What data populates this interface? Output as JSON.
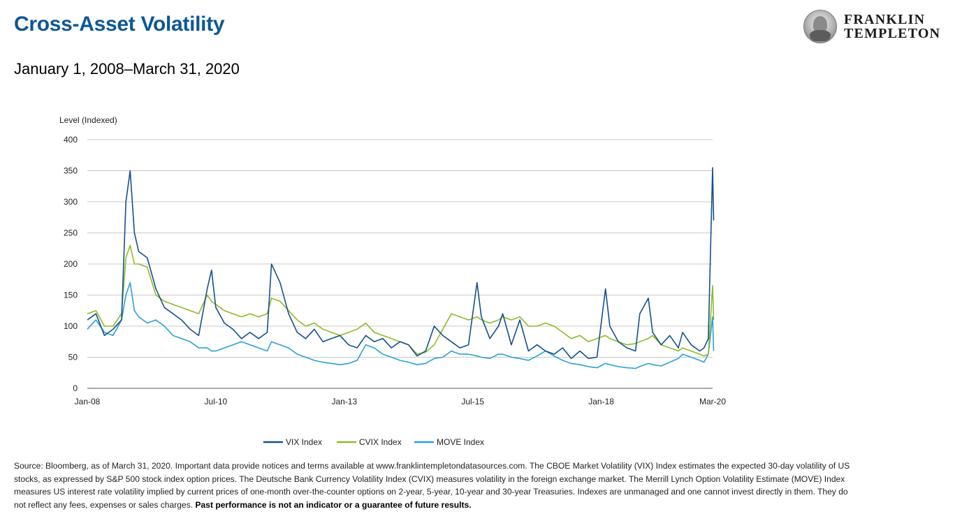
{
  "header": {
    "title": "Cross-Asset Volatility",
    "subtitle": "January 1, 2008–March 31, 2020"
  },
  "logo": {
    "line1": "FRANKLIN",
    "line2": "TEMPLETON",
    "icon": "benjamin-franklin-portrait-icon"
  },
  "footnote": {
    "text": "Source: Bloomberg, as of March 31, 2020. Important data provide notices and terms available at www.franklintempletondatasources.com. The CBOE Market Volatility (VIX) Index estimates the expected 30-day volatility of US stocks, as expressed by S&P 500 stock index option prices. The Deutsche Bank Currency Volatility Index (CVIX) measures volatility in the foreign exchange market. The Merrill Lynch Option Volatility Estimate (MOVE) Index measures US interest rate volatility implied by current prices of one-month over-the-counter options on 2-year, 5-year, 10-year and 30-year Treasuries. Indexes are unmanaged and one cannot invest directly in them. They do not reflect any fees, expenses or sales charges. ",
    "bold": "Past performance is not an indicator or a guarantee of future results."
  },
  "chart_data": {
    "type": "line",
    "ylabel": "Level (Indexed)",
    "ylim": [
      0,
      400
    ],
    "yticks": [
      0,
      50,
      100,
      150,
      200,
      250,
      300,
      350,
      400
    ],
    "xlim": [
      "2008-01",
      "2020-03"
    ],
    "xticks": [
      {
        "label": "Jan-08",
        "date": "2008-01"
      },
      {
        "label": "Jul-10",
        "date": "2010-07"
      },
      {
        "label": "Jan-13",
        "date": "2013-01"
      },
      {
        "label": "Jul-15",
        "date": "2015-07"
      },
      {
        "label": "Jan-18",
        "date": "2018-01"
      },
      {
        "label": "Mar-20",
        "date": "2020-03"
      }
    ],
    "grid": true,
    "legend": "bottom-center",
    "series": [
      {
        "name": "VIX Index",
        "color": "#14508c",
        "points": [
          [
            "2008-01",
            110
          ],
          [
            "2008-03",
            120
          ],
          [
            "2008-05",
            85
          ],
          [
            "2008-07",
            95
          ],
          [
            "2008-09",
            110
          ],
          [
            "2008-10",
            300
          ],
          [
            "2008-11",
            350
          ],
          [
            "2008-12",
            250
          ],
          [
            "2009-01",
            220
          ],
          [
            "2009-03",
            210
          ],
          [
            "2009-05",
            160
          ],
          [
            "2009-07",
            130
          ],
          [
            "2009-09",
            120
          ],
          [
            "2009-11",
            110
          ],
          [
            "2010-01",
            95
          ],
          [
            "2010-03",
            85
          ],
          [
            "2010-05",
            160
          ],
          [
            "2010-06",
            190
          ],
          [
            "2010-07",
            130
          ],
          [
            "2010-09",
            105
          ],
          [
            "2010-11",
            95
          ],
          [
            "2011-01",
            80
          ],
          [
            "2011-03",
            90
          ],
          [
            "2011-05",
            80
          ],
          [
            "2011-07",
            90
          ],
          [
            "2011-08",
            200
          ],
          [
            "2011-10",
            170
          ],
          [
            "2011-12",
            120
          ],
          [
            "2012-02",
            90
          ],
          [
            "2012-04",
            80
          ],
          [
            "2012-06",
            95
          ],
          [
            "2012-08",
            75
          ],
          [
            "2012-10",
            80
          ],
          [
            "2012-12",
            85
          ],
          [
            "2013-02",
            70
          ],
          [
            "2013-04",
            65
          ],
          [
            "2013-06",
            85
          ],
          [
            "2013-08",
            75
          ],
          [
            "2013-10",
            80
          ],
          [
            "2013-12",
            65
          ],
          [
            "2014-02",
            75
          ],
          [
            "2014-04",
            70
          ],
          [
            "2014-06",
            52
          ],
          [
            "2014-08",
            60
          ],
          [
            "2014-10",
            100
          ],
          [
            "2014-12",
            85
          ],
          [
            "2015-02",
            75
          ],
          [
            "2015-04",
            65
          ],
          [
            "2015-06",
            70
          ],
          [
            "2015-08",
            170
          ],
          [
            "2015-09",
            115
          ],
          [
            "2015-11",
            80
          ],
          [
            "2016-01",
            100
          ],
          [
            "2016-02",
            120
          ],
          [
            "2016-04",
            70
          ],
          [
            "2016-06",
            110
          ],
          [
            "2016-08",
            60
          ],
          [
            "2016-10",
            70
          ],
          [
            "2016-12",
            60
          ],
          [
            "2017-02",
            55
          ],
          [
            "2017-04",
            65
          ],
          [
            "2017-06",
            48
          ],
          [
            "2017-08",
            60
          ],
          [
            "2017-10",
            48
          ],
          [
            "2017-12",
            50
          ],
          [
            "2018-02",
            160
          ],
          [
            "2018-03",
            100
          ],
          [
            "2018-05",
            75
          ],
          [
            "2018-07",
            65
          ],
          [
            "2018-09",
            60
          ],
          [
            "2018-10",
            120
          ],
          [
            "2018-12",
            145
          ],
          [
            "2019-01",
            90
          ],
          [
            "2019-03",
            70
          ],
          [
            "2019-05",
            85
          ],
          [
            "2019-07",
            65
          ],
          [
            "2019-08",
            90
          ],
          [
            "2019-10",
            70
          ],
          [
            "2019-12",
            60
          ],
          [
            "2020-01",
            65
          ],
          [
            "2020-02",
            80
          ],
          [
            "2020-03",
            355
          ],
          [
            "2020-03",
            270
          ]
        ]
      },
      {
        "name": "CVIX Index",
        "color": "#8dbb25",
        "points": [
          [
            "2008-01",
            120
          ],
          [
            "2008-03",
            125
          ],
          [
            "2008-05",
            100
          ],
          [
            "2008-07",
            100
          ],
          [
            "2008-09",
            120
          ],
          [
            "2008-10",
            210
          ],
          [
            "2008-11",
            230
          ],
          [
            "2008-12",
            200
          ],
          [
            "2009-01",
            200
          ],
          [
            "2009-03",
            195
          ],
          [
            "2009-05",
            150
          ],
          [
            "2009-07",
            140
          ],
          [
            "2009-09",
            135
          ],
          [
            "2009-11",
            130
          ],
          [
            "2010-01",
            125
          ],
          [
            "2010-03",
            120
          ],
          [
            "2010-05",
            150
          ],
          [
            "2010-06",
            140
          ],
          [
            "2010-07",
            135
          ],
          [
            "2010-09",
            125
          ],
          [
            "2010-11",
            120
          ],
          [
            "2011-01",
            115
          ],
          [
            "2011-03",
            120
          ],
          [
            "2011-05",
            115
          ],
          [
            "2011-07",
            120
          ],
          [
            "2011-08",
            145
          ],
          [
            "2011-10",
            140
          ],
          [
            "2011-12",
            125
          ],
          [
            "2012-02",
            110
          ],
          [
            "2012-04",
            100
          ],
          [
            "2012-06",
            105
          ],
          [
            "2012-08",
            95
          ],
          [
            "2012-10",
            90
          ],
          [
            "2012-12",
            85
          ],
          [
            "2013-02",
            90
          ],
          [
            "2013-04",
            95
          ],
          [
            "2013-06",
            105
          ],
          [
            "2013-08",
            90
          ],
          [
            "2013-10",
            85
          ],
          [
            "2013-12",
            80
          ],
          [
            "2014-02",
            75
          ],
          [
            "2014-04",
            70
          ],
          [
            "2014-06",
            55
          ],
          [
            "2014-08",
            58
          ],
          [
            "2014-10",
            70
          ],
          [
            "2014-12",
            95
          ],
          [
            "2015-02",
            120
          ],
          [
            "2015-04",
            115
          ],
          [
            "2015-06",
            110
          ],
          [
            "2015-08",
            115
          ],
          [
            "2015-09",
            110
          ],
          [
            "2015-11",
            105
          ],
          [
            "2016-01",
            110
          ],
          [
            "2016-02",
            115
          ],
          [
            "2016-04",
            110
          ],
          [
            "2016-06",
            115
          ],
          [
            "2016-08",
            100
          ],
          [
            "2016-10",
            100
          ],
          [
            "2016-12",
            105
          ],
          [
            "2017-02",
            100
          ],
          [
            "2017-04",
            90
          ],
          [
            "2017-06",
            80
          ],
          [
            "2017-08",
            85
          ],
          [
            "2017-10",
            75
          ],
          [
            "2017-12",
            80
          ],
          [
            "2018-02",
            85
          ],
          [
            "2018-03",
            80
          ],
          [
            "2018-05",
            75
          ],
          [
            "2018-07",
            70
          ],
          [
            "2018-09",
            72
          ],
          [
            "2018-10",
            75
          ],
          [
            "2018-12",
            80
          ],
          [
            "2019-01",
            85
          ],
          [
            "2019-03",
            70
          ],
          [
            "2019-05",
            65
          ],
          [
            "2019-07",
            60
          ],
          [
            "2019-08",
            65
          ],
          [
            "2019-10",
            60
          ],
          [
            "2019-12",
            55
          ],
          [
            "2020-01",
            52
          ],
          [
            "2020-02",
            55
          ],
          [
            "2020-03",
            165
          ],
          [
            "2020-03",
            110
          ]
        ]
      },
      {
        "name": "MOVE Index",
        "color": "#2aa1d8",
        "points": [
          [
            "2008-01",
            95
          ],
          [
            "2008-03",
            110
          ],
          [
            "2008-05",
            90
          ],
          [
            "2008-07",
            85
          ],
          [
            "2008-09",
            110
          ],
          [
            "2008-10",
            150
          ],
          [
            "2008-11",
            170
          ],
          [
            "2008-12",
            125
          ],
          [
            "2009-01",
            115
          ],
          [
            "2009-03",
            105
          ],
          [
            "2009-05",
            110
          ],
          [
            "2009-07",
            100
          ],
          [
            "2009-09",
            85
          ],
          [
            "2009-11",
            80
          ],
          [
            "2010-01",
            75
          ],
          [
            "2010-03",
            65
          ],
          [
            "2010-05",
            65
          ],
          [
            "2010-06",
            60
          ],
          [
            "2010-07",
            60
          ],
          [
            "2010-09",
            65
          ],
          [
            "2010-11",
            70
          ],
          [
            "2011-01",
            75
          ],
          [
            "2011-03",
            70
          ],
          [
            "2011-05",
            65
          ],
          [
            "2011-07",
            60
          ],
          [
            "2011-08",
            75
          ],
          [
            "2011-10",
            70
          ],
          [
            "2011-12",
            65
          ],
          [
            "2012-02",
            55
          ],
          [
            "2012-04",
            50
          ],
          [
            "2012-06",
            45
          ],
          [
            "2012-08",
            42
          ],
          [
            "2012-10",
            40
          ],
          [
            "2012-12",
            38
          ],
          [
            "2013-02",
            40
          ],
          [
            "2013-04",
            45
          ],
          [
            "2013-06",
            70
          ],
          [
            "2013-08",
            65
          ],
          [
            "2013-10",
            55
          ],
          [
            "2013-12",
            50
          ],
          [
            "2014-02",
            45
          ],
          [
            "2014-04",
            42
          ],
          [
            "2014-06",
            38
          ],
          [
            "2014-08",
            40
          ],
          [
            "2014-10",
            48
          ],
          [
            "2014-12",
            50
          ],
          [
            "2015-02",
            60
          ],
          [
            "2015-04",
            55
          ],
          [
            "2015-06",
            55
          ],
          [
            "2015-08",
            52
          ],
          [
            "2015-09",
            50
          ],
          [
            "2015-11",
            48
          ],
          [
            "2016-01",
            55
          ],
          [
            "2016-02",
            55
          ],
          [
            "2016-04",
            50
          ],
          [
            "2016-06",
            48
          ],
          [
            "2016-08",
            45
          ],
          [
            "2016-10",
            52
          ],
          [
            "2016-12",
            60
          ],
          [
            "2017-02",
            52
          ],
          [
            "2017-04",
            45
          ],
          [
            "2017-06",
            40
          ],
          [
            "2017-08",
            38
          ],
          [
            "2017-10",
            35
          ],
          [
            "2017-12",
            33
          ],
          [
            "2018-02",
            40
          ],
          [
            "2018-03",
            38
          ],
          [
            "2018-05",
            35
          ],
          [
            "2018-07",
            33
          ],
          [
            "2018-09",
            32
          ],
          [
            "2018-10",
            35
          ],
          [
            "2018-12",
            40
          ],
          [
            "2019-01",
            38
          ],
          [
            "2019-03",
            36
          ],
          [
            "2019-05",
            42
          ],
          [
            "2019-07",
            48
          ],
          [
            "2019-08",
            55
          ],
          [
            "2019-10",
            50
          ],
          [
            "2019-12",
            45
          ],
          [
            "2020-01",
            42
          ],
          [
            "2020-02",
            55
          ],
          [
            "2020-03",
            115
          ],
          [
            "2020-03",
            60
          ]
        ]
      }
    ]
  }
}
